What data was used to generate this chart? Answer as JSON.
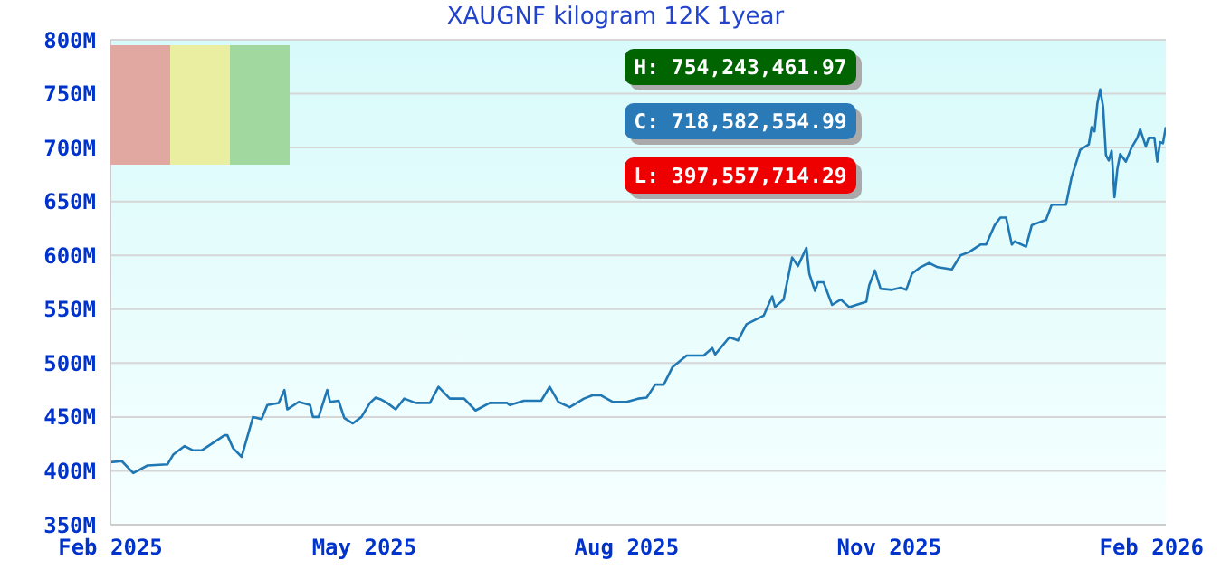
{
  "chart_data": {
    "type": "line",
    "title": "XAUGNF kilogram 12K 1year",
    "annotations": [
      "H: 754,243,461.97",
      "C: 718,582,554.99",
      "L: 397,557,714.29"
    ],
    "x": [
      "2025-02-01",
      "2025-02-05",
      "2025-02-09",
      "2025-02-14",
      "2025-02-21",
      "2025-02-23",
      "2025-02-27",
      "2025-03-02",
      "2025-03-05",
      "2025-03-13",
      "2025-03-14",
      "2025-03-16",
      "2025-03-19",
      "2025-03-23",
      "2025-03-26",
      "2025-03-28",
      "2025-04-01",
      "2025-04-03",
      "2025-04-04",
      "2025-04-08",
      "2025-04-12",
      "2025-04-13",
      "2025-04-15",
      "2025-04-18",
      "2025-04-19",
      "2025-04-22",
      "2025-04-24",
      "2025-04-27",
      "2025-04-30",
      "2025-05-03",
      "2025-05-05",
      "2025-05-07",
      "2025-05-09",
      "2025-05-12",
      "2025-05-15",
      "2025-05-19",
      "2025-05-24",
      "2025-05-27",
      "2025-05-31",
      "2025-06-05",
      "2025-06-09",
      "2025-06-14",
      "2025-06-20",
      "2025-06-21",
      "2025-06-26",
      "2025-07-02",
      "2025-07-05",
      "2025-07-08",
      "2025-07-12",
      "2025-07-17",
      "2025-07-20",
      "2025-07-23",
      "2025-07-27",
      "2025-08-01",
      "2025-08-05",
      "2025-08-08",
      "2025-08-11",
      "2025-08-14",
      "2025-08-17",
      "2025-08-22",
      "2025-08-28",
      "2025-08-31",
      "2025-09-01",
      "2025-09-06",
      "2025-09-09",
      "2025-09-12",
      "2025-09-15",
      "2025-09-18",
      "2025-09-21",
      "2025-09-22",
      "2025-09-25",
      "2025-09-28",
      "2025-09-30",
      "2025-10-03",
      "2025-10-04",
      "2025-10-06",
      "2025-10-07",
      "2025-10-09",
      "2025-10-12",
      "2025-10-15",
      "2025-10-18",
      "2025-10-24",
      "2025-10-25",
      "2025-10-27",
      "2025-10-29",
      "2025-11-02",
      "2025-11-05",
      "2025-11-07",
      "2025-11-09",
      "2025-11-12",
      "2025-11-15",
      "2025-11-18",
      "2025-11-23",
      "2025-11-26",
      "2025-11-29",
      "2025-12-03",
      "2025-12-05",
      "2025-12-08",
      "2025-12-10",
      "2025-12-12",
      "2025-12-14",
      "2025-12-15",
      "2025-12-19",
      "2025-12-21",
      "2025-12-26",
      "2025-12-28",
      "2026-01-02",
      "2026-01-04",
      "2026-01-07",
      "2026-01-10",
      "2026-01-11",
      "2026-01-12",
      "2026-01-13",
      "2026-01-14",
      "2026-01-15",
      "2026-01-16",
      "2026-01-17",
      "2026-01-18",
      "2026-01-19",
      "2026-01-20",
      "2026-01-21",
      "2026-01-23",
      "2026-01-25",
      "2026-01-27",
      "2026-01-28",
      "2026-01-30",
      "2026-01-31",
      "2026-02-02",
      "2026-02-03",
      "2026-02-04",
      "2026-02-05",
      "2026-02-06"
    ],
    "series": [
      {
        "color": "#1f77b4",
        "values": [
          408,
          409,
          398,
          405,
          406,
          415,
          423,
          419,
          419,
          433,
          433,
          421,
          413,
          450,
          448,
          461,
          463,
          475,
          457,
          464,
          461,
          450,
          450,
          475,
          464,
          465,
          449,
          444,
          450,
          463,
          468,
          466,
          463,
          457,
          467,
          463,
          463,
          478,
          467,
          467,
          456,
          463,
          463,
          461,
          465,
          465,
          478,
          464,
          459,
          467,
          470,
          470,
          464,
          464,
          467,
          468,
          480,
          480,
          496,
          507,
          507,
          514,
          508,
          524,
          521,
          536,
          540,
          544,
          562,
          552,
          559,
          598,
          590,
          607,
          583,
          567,
          575,
          575,
          554,
          559,
          552,
          557,
          572,
          586,
          569,
          568,
          570,
          568,
          583,
          589,
          593,
          589,
          587,
          600,
          603,
          610,
          610,
          628,
          635,
          635,
          610,
          613,
          608,
          628,
          633,
          647,
          647,
          673,
          698,
          703,
          719,
          715,
          741,
          754,
          738,
          693,
          688,
          697,
          654,
          680,
          694,
          687,
          700,
          709,
          717,
          701,
          709,
          709,
          687,
          705,
          704,
          719
        ]
      }
    ],
    "xlim": [
      "2025-02-01",
      "2026-02-06"
    ],
    "xticks": [
      {
        "value": "2025-02-01",
        "label": "Feb 2025"
      },
      {
        "value": "2025-05-01",
        "label": "May 2025"
      },
      {
        "value": "2025-08-01",
        "label": "Aug 2025"
      },
      {
        "value": "2025-11-01",
        "label": "Nov 2025"
      },
      {
        "value": "2026-02-01",
        "label": "Feb 2026"
      }
    ],
    "ylim": [
      350,
      800
    ],
    "yticks": [
      {
        "value": 350,
        "label": "350M"
      },
      {
        "value": 400,
        "label": "400M"
      },
      {
        "value": 450,
        "label": "450M"
      },
      {
        "value": 500,
        "label": "500M"
      },
      {
        "value": 550,
        "label": "550M"
      },
      {
        "value": 600,
        "label": "600M"
      },
      {
        "value": 650,
        "label": "650M"
      },
      {
        "value": 700,
        "label": "700M"
      },
      {
        "value": 750,
        "label": "750M"
      },
      {
        "value": 800,
        "label": "800M"
      }
    ],
    "grid": "y",
    "legend": false,
    "marker": "none",
    "line_style": "solid"
  }
}
